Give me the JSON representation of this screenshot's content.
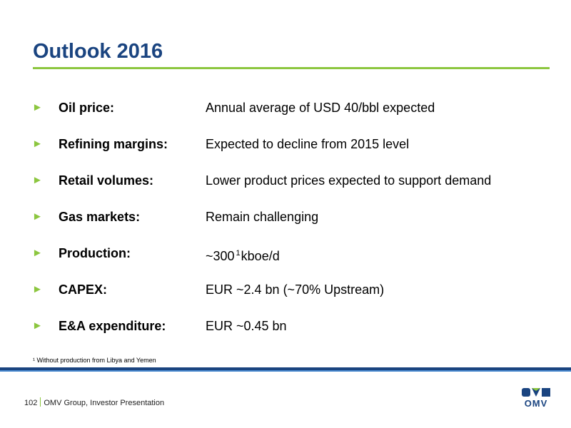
{
  "slide": {
    "title": "Outlook 2016",
    "items": [
      {
        "label": "Oil price:",
        "value": "Annual average of USD 40/bbl expected"
      },
      {
        "label": "Refining margins:",
        "value": "Expected to decline from 2015 level"
      },
      {
        "label": "Retail volumes:",
        "value": "Lower product prices expected to support demand"
      },
      {
        "label": "Gas markets:",
        "value": "Remain challenging"
      },
      {
        "label": "Production:",
        "value": "~300",
        "sup": "1",
        "value_suffix": "kboe/d"
      },
      {
        "label": "CAPEX:",
        "value": "EUR ~2.4 bn (~70% Upstream)"
      },
      {
        "label": "E&A expenditure:",
        "value": "EUR ~0.45 bn"
      }
    ],
    "bullet_glyph": "►",
    "footnote": "¹ Without production from Libya and Yemen"
  },
  "footer": {
    "page_number": "102",
    "text": "OMV Group, Investor Presentation"
  },
  "logo": {
    "text": "OMV"
  },
  "colors": {
    "title": "#1a4480",
    "accent_green": "#8cc63f",
    "band_dark": "#1a4480",
    "band_light": "#4a8ad0"
  }
}
